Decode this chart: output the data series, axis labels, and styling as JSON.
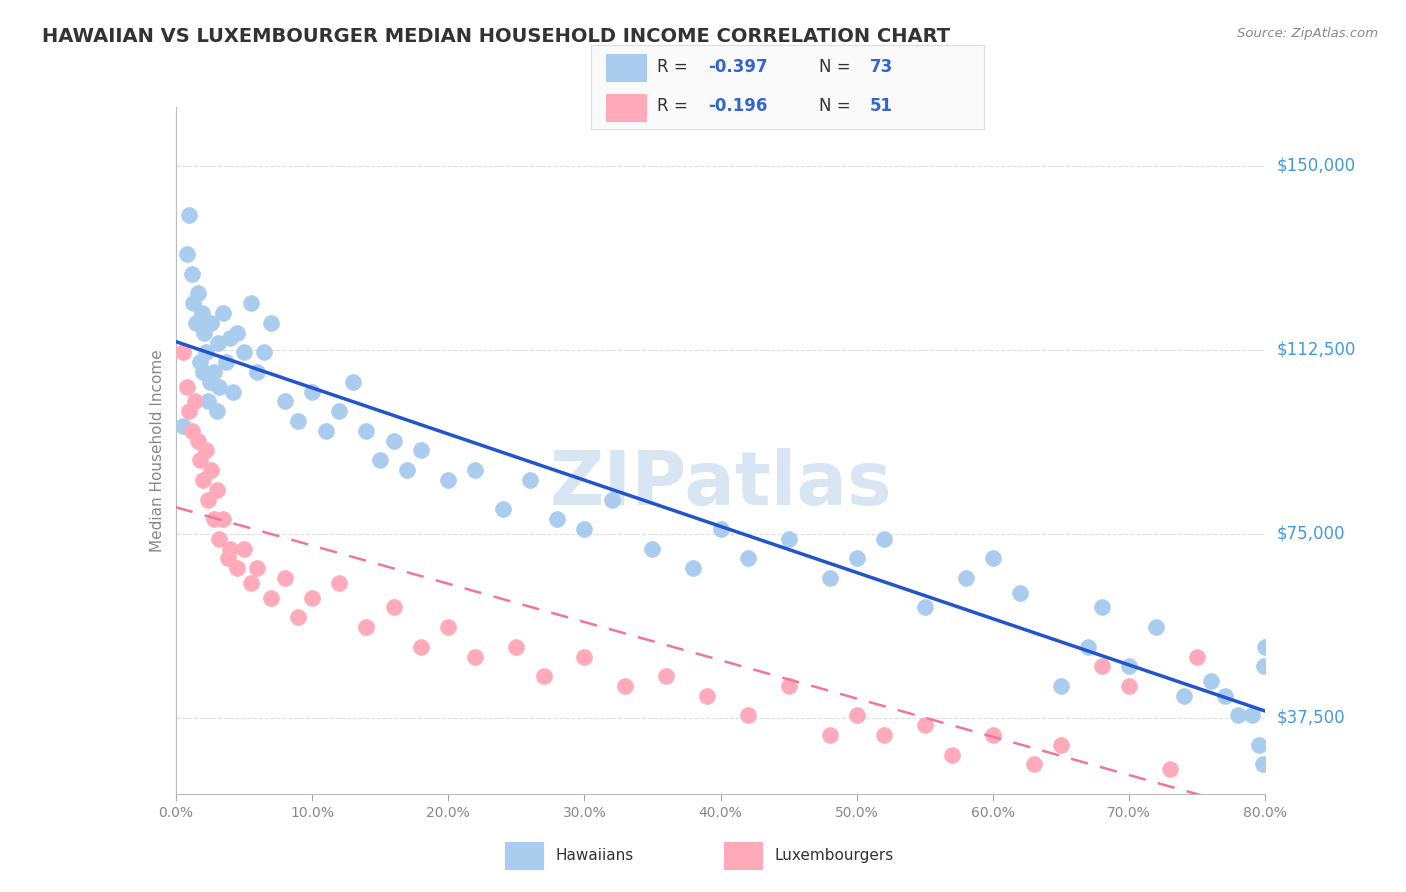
{
  "title": "HAWAIIAN VS LUXEMBOURGER MEDIAN HOUSEHOLD INCOME CORRELATION CHART",
  "source": "Source: ZipAtlas.com",
  "ylabel": "Median Household Income",
  "yticks": [
    37500,
    75000,
    112500,
    150000
  ],
  "ytick_labels": [
    "$37,500",
    "$75,000",
    "$112,500",
    "$150,000"
  ],
  "xtick_labels": [
    "0.0%",
    "10.0%",
    "20.0%",
    "30.0%",
    "40.0%",
    "50.0%",
    "60.0%",
    "70.0%",
    "80.0%"
  ],
  "xtick_vals": [
    0,
    10,
    20,
    30,
    40,
    50,
    60,
    70,
    80
  ],
  "xlim": [
    0.0,
    80.0
  ],
  "ylim": [
    22000,
    162000
  ],
  "hawaiian_R": -0.397,
  "hawaiian_N": 73,
  "luxembourger_R": -0.196,
  "luxembourger_N": 51,
  "blue_line_color": "#2255CC",
  "blue_scatter_color": "#AACCEE",
  "pink_line_color": "#EE7799",
  "pink_scatter_color": "#FFAABB",
  "legend_text_color": "#333333",
  "legend_value_color": "#3366CC",
  "watermark_color": "#C8DCF0",
  "title_color": "#333333",
  "ylabel_color": "#888888",
  "ytick_color": "#4499DD",
  "xtick_color": "#888888",
  "grid_color": "#DDDDDD",
  "bg_color": "#FFFFFF",
  "hawaiian_x": [
    0.5,
    0.8,
    1.0,
    1.2,
    1.3,
    1.5,
    1.6,
    1.8,
    1.9,
    2.0,
    2.1,
    2.2,
    2.4,
    2.5,
    2.6,
    2.8,
    3.0,
    3.1,
    3.2,
    3.5,
    3.7,
    4.0,
    4.2,
    4.5,
    5.0,
    5.5,
    6.0,
    6.5,
    7.0,
    8.0,
    9.0,
    10.0,
    11.0,
    12.0,
    13.0,
    14.0,
    15.0,
    16.0,
    17.0,
    18.0,
    20.0,
    22.0,
    24.0,
    26.0,
    28.0,
    30.0,
    32.0,
    35.0,
    38.0,
    40.0,
    42.0,
    45.0,
    48.0,
    50.0,
    52.0,
    55.0,
    58.0,
    60.0,
    62.0,
    65.0,
    67.0,
    68.0,
    70.0,
    72.0,
    74.0,
    76.0,
    77.0,
    78.0,
    79.0,
    79.5,
    79.8,
    79.9,
    80.0
  ],
  "hawaiian_y": [
    97000,
    132000,
    140000,
    128000,
    122000,
    118000,
    124000,
    110000,
    120000,
    108000,
    116000,
    112000,
    102000,
    106000,
    118000,
    108000,
    100000,
    114000,
    105000,
    120000,
    110000,
    115000,
    104000,
    116000,
    112000,
    122000,
    108000,
    112000,
    118000,
    102000,
    98000,
    104000,
    96000,
    100000,
    106000,
    96000,
    90000,
    94000,
    88000,
    92000,
    86000,
    88000,
    80000,
    86000,
    78000,
    76000,
    82000,
    72000,
    68000,
    76000,
    70000,
    74000,
    66000,
    70000,
    74000,
    60000,
    66000,
    70000,
    63000,
    44000,
    52000,
    60000,
    48000,
    56000,
    42000,
    45000,
    42000,
    38000,
    38000,
    32000,
    28000,
    48000,
    52000
  ],
  "luxembourger_x": [
    0.5,
    0.8,
    1.0,
    1.2,
    1.4,
    1.6,
    1.8,
    2.0,
    2.2,
    2.4,
    2.6,
    2.8,
    3.0,
    3.2,
    3.5,
    3.8,
    4.0,
    4.5,
    5.0,
    5.5,
    6.0,
    7.0,
    8.0,
    9.0,
    10.0,
    12.0,
    14.0,
    16.0,
    18.0,
    20.0,
    22.0,
    25.0,
    27.0,
    30.0,
    33.0,
    36.0,
    39.0,
    42.0,
    45.0,
    48.0,
    50.0,
    52.0,
    55.0,
    57.0,
    60.0,
    63.0,
    65.0,
    68.0,
    70.0,
    73.0,
    75.0
  ],
  "luxembourger_y": [
    112000,
    105000,
    100000,
    96000,
    102000,
    94000,
    90000,
    86000,
    92000,
    82000,
    88000,
    78000,
    84000,
    74000,
    78000,
    70000,
    72000,
    68000,
    72000,
    65000,
    68000,
    62000,
    66000,
    58000,
    62000,
    65000,
    56000,
    60000,
    52000,
    56000,
    50000,
    52000,
    46000,
    50000,
    44000,
    46000,
    42000,
    38000,
    44000,
    34000,
    38000,
    34000,
    36000,
    30000,
    34000,
    28000,
    32000,
    48000,
    44000,
    27000,
    50000
  ]
}
